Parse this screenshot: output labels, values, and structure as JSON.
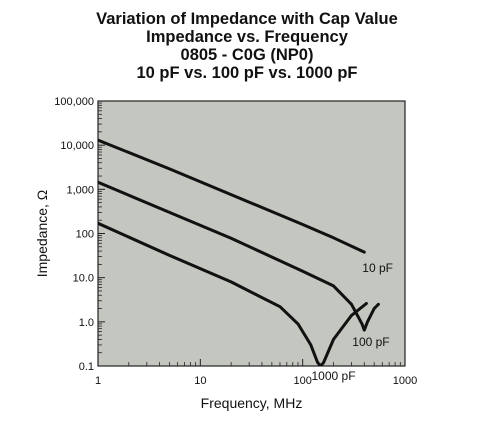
{
  "chart_data": {
    "type": "line",
    "title_lines": [
      "Variation of Impedance with Cap Value",
      "Impedance vs. Frequency",
      "0805 - C0G (NP0)",
      "10 pF vs. 100 pF vs. 1000 pF"
    ],
    "xlabel": "Frequency, MHz",
    "ylabel": "Impedance, Ω",
    "x_scale": "log",
    "y_scale": "log",
    "xlim": [
      1,
      1000
    ],
    "ylim": [
      0.1,
      100000
    ],
    "x_ticks": [
      {
        "value": 1,
        "label": "1"
      },
      {
        "value": 10,
        "label": "10"
      },
      {
        "value": 100,
        "label": "100"
      },
      {
        "value": 1000,
        "label": "1000"
      }
    ],
    "y_ticks": [
      {
        "value": 0.1,
        "label": "0.1"
      },
      {
        "value": 1,
        "label": "1.0"
      },
      {
        "value": 10,
        "label": "10.0"
      },
      {
        "value": 100,
        "label": "100"
      },
      {
        "value": 1000,
        "label": "1,000"
      },
      {
        "value": 10000,
        "label": "10,000"
      },
      {
        "value": 100000,
        "label": "100,000"
      }
    ],
    "grid": false,
    "plot_background": "#c4c6c0",
    "line_color": "#111111",
    "series": [
      {
        "name": "10 pF",
        "x": [
          1,
          5,
          20,
          100,
          200,
          400
        ],
        "y": [
          13000,
          2900,
          760,
          160,
          80,
          38
        ]
      },
      {
        "name": "100 pF",
        "x": [
          1,
          5,
          20,
          100,
          200,
          300,
          380,
          400,
          430,
          500,
          550
        ],
        "y": [
          1450,
          300,
          78,
          14,
          6.5,
          2.5,
          0.9,
          0.65,
          1.0,
          2.0,
          2.5
        ]
      },
      {
        "name": "1000 pF",
        "x": [
          1,
          5,
          20,
          60,
          90,
          120,
          140,
          150,
          160,
          200,
          300,
          420
        ],
        "y": [
          170,
          32,
          8,
          2.2,
          0.9,
          0.3,
          0.12,
          0.1,
          0.12,
          0.4,
          1.4,
          2.6
        ]
      }
    ]
  }
}
